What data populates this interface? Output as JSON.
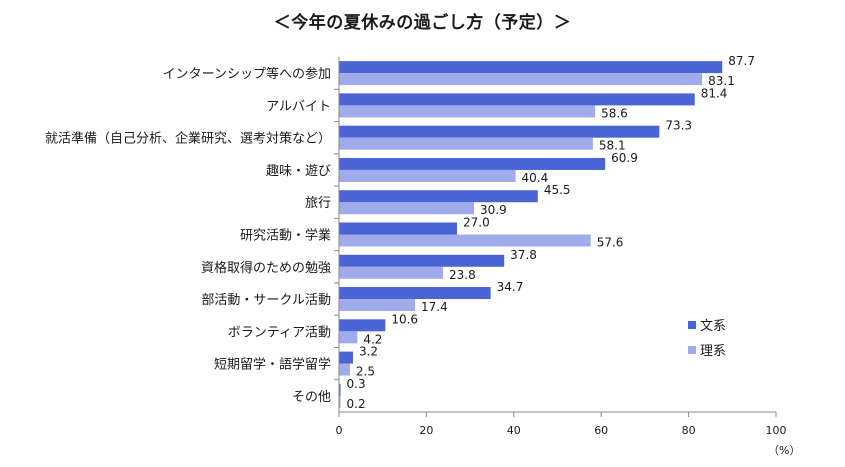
{
  "chart_data": {
    "type": "bar",
    "orientation": "horizontal",
    "title": "＜今年の夏休みの過ごし方（予定）＞",
    "categories": [
      "インターンシップ等への参加",
      "アルバイト",
      "就活準備（自己分析、企業研究、選考対策など）",
      "趣味・遊び",
      "旅行",
      "研究活動・学業",
      "資格取得のための勉強",
      "部活動・サークル活動",
      "ボランティア活動",
      "短期留学・語学留学",
      "その他"
    ],
    "series": [
      {
        "name": "文系",
        "color": "#4a64d6",
        "values": [
          87.7,
          81.4,
          73.3,
          60.9,
          45.5,
          27.0,
          37.8,
          34.7,
          10.6,
          3.2,
          0.3
        ],
        "labels": [
          "87.7",
          "81.4",
          "73.3",
          "60.9",
          "45.5",
          "27.0",
          "37.8",
          "34.7",
          "10.6",
          "3.2",
          "0.3"
        ]
      },
      {
        "name": "理系",
        "color": "#9fabea",
        "values": [
          83.1,
          58.6,
          58.1,
          40.4,
          30.9,
          57.6,
          23.8,
          17.4,
          4.2,
          2.5,
          0.2
        ],
        "labels": [
          "83.1",
          "58.6",
          "58.1",
          "40.4",
          "30.9",
          "57.6",
          "23.8",
          "17.4",
          "4.2",
          "2.5",
          "0.2"
        ]
      }
    ],
    "xlim": [
      0,
      100
    ],
    "xticks": [
      "0",
      "20",
      "40",
      "60",
      "80",
      "100"
    ],
    "xunit": "（%）",
    "legend_position": "right",
    "grid": false
  }
}
